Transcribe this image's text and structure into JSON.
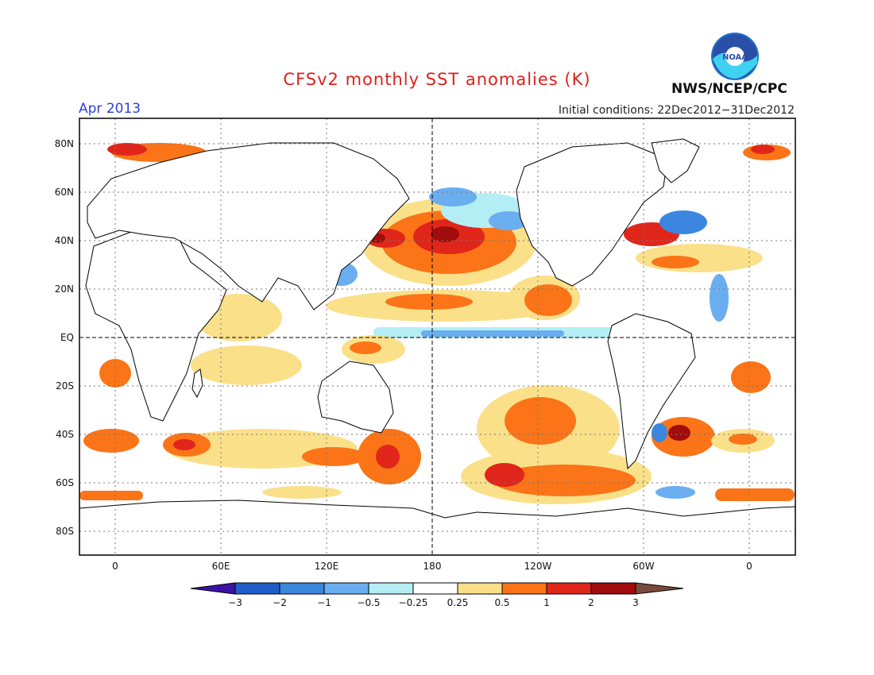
{
  "title": "CFSv2 monthly SST anomalies (K)",
  "month": "Apr 2013",
  "initial_conditions": "Initial conditions: 22Dec2012−31Dec2012",
  "agency": "NWS/NCEP/CPC",
  "logo_text": "NOAA",
  "map": {
    "y_labels": [
      "80N",
      "60N",
      "40N",
      "20N",
      "EQ",
      "20S",
      "40S",
      "60S",
      "80S"
    ],
    "x_labels": [
      "0",
      "60E",
      "120E",
      "180",
      "120W",
      "60W",
      "0"
    ]
  },
  "colorbar": {
    "labels": [
      "−3",
      "−2",
      "−1",
      "−0.5",
      "−0.25",
      "0.25",
      "0.5",
      "1",
      "2",
      "3"
    ],
    "colors": [
      "#3a12a8",
      "#1f5ec8",
      "#3b86df",
      "#6aaef0",
      "#b3eef4",
      "#ffffff",
      "#fbe08a",
      "#fb7417",
      "#e0261a",
      "#a10d0c",
      "#7a4a3a"
    ]
  },
  "anomaly_regions": [
    {
      "name": "north-pacific-warm",
      "level": "1 to 3 K"
    },
    {
      "name": "equatorial-pacific-cool-band",
      "level": "-0.5 to -1 K"
    },
    {
      "name": "south-pacific-warm",
      "level": "1 to 2 K"
    }
  ]
}
